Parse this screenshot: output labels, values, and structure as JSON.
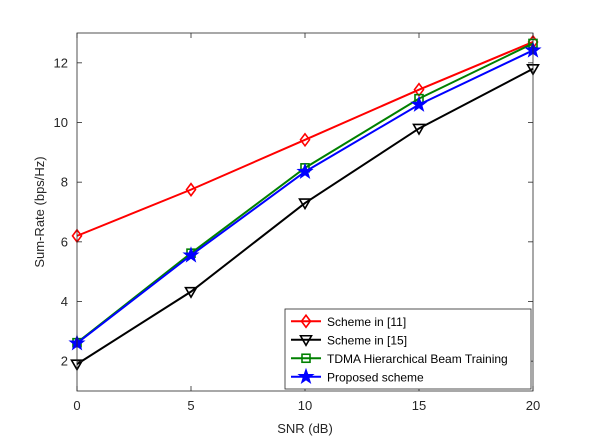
{
  "chart_data": {
    "type": "line",
    "title": "",
    "xlabel": "SNR (dB)",
    "ylabel": "Sum-Rate (bps/Hz)",
    "x": [
      0,
      5,
      10,
      15,
      20
    ],
    "xlim": [
      0,
      20
    ],
    "ylim": [
      1,
      13
    ],
    "xticks": [
      0,
      5,
      10,
      15,
      20
    ],
    "yticks": [
      2,
      4,
      6,
      8,
      10,
      12
    ],
    "grid": false,
    "legend_position": "bottom-right",
    "series": [
      {
        "name": "Scheme in [11]",
        "color": "#ff0000",
        "marker": "diamond",
        "values": [
          6.2,
          7.75,
          9.42,
          11.1,
          12.7
        ]
      },
      {
        "name": "Scheme in [15]",
        "color": "#000000",
        "marker": "triangle-down",
        "values": [
          1.9,
          4.33,
          7.3,
          9.8,
          11.8
        ]
      },
      {
        "name": "TDMA Hierarchical Beam Training",
        "color": "#008000",
        "marker": "square",
        "values": [
          2.62,
          5.62,
          8.48,
          10.8,
          12.65
        ]
      },
      {
        "name": "Proposed scheme",
        "color": "#0000ff",
        "marker": "star",
        "values": [
          2.6,
          5.55,
          8.35,
          10.6,
          12.42
        ]
      }
    ]
  }
}
